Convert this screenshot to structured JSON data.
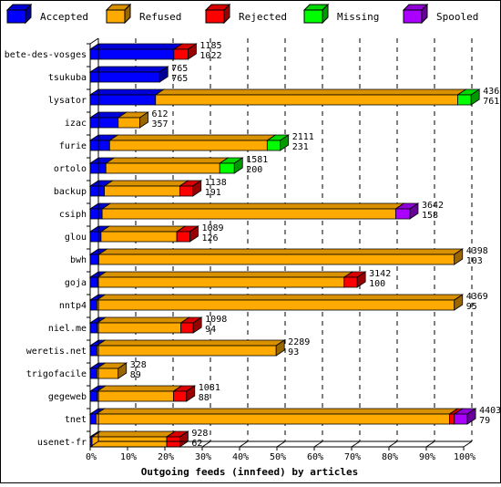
{
  "chart_data": {
    "type": "bar",
    "stacked": true,
    "orientation": "horizontal",
    "title": "",
    "xlabel": "Outgoing feeds (innfeed) by articles",
    "ylabel": "",
    "xlim": [
      0,
      100
    ],
    "x_unit": "%",
    "x_ticks": [
      "0%",
      "10%",
      "20%",
      "30%",
      "40%",
      "50%",
      "60%",
      "70%",
      "80%",
      "90%",
      "100%"
    ],
    "grid": true,
    "legend_position": "top",
    "categories": [
      "bete-des-vosges",
      "tsukuba",
      "lysator",
      "izac",
      "furie",
      "ortolo",
      "backup",
      "csiph",
      "glou",
      "bwh",
      "goja",
      "nntp4",
      "niel.me",
      "weretis.net",
      "trigofacile",
      "gegeweb",
      "tnet",
      "usenet-fr"
    ],
    "series": [
      {
        "name": "Accepted",
        "color": "#0000ff",
        "values": [
          22.4,
          18.6,
          17.5,
          7.5,
          5.2,
          4.2,
          3.8,
          3.2,
          2.9,
          2.3,
          2.0,
          1.8,
          1.9,
          1.8,
          1.8,
          1.9,
          1.6,
          0.5
        ]
      },
      {
        "name": "Refused",
        "color": "#ffaa00",
        "values": [
          0,
          0,
          80.9,
          5.8,
          42.2,
          30.5,
          20.2,
          78.6,
          20.3,
          95.2,
          66.0,
          95.7,
          22.4,
          48.0,
          5.7,
          20.4,
          94.6,
          20.0
        ]
      },
      {
        "name": "Rejected",
        "color": "#ff0000",
        "values": [
          3.8,
          0,
          0,
          0,
          0,
          0,
          3.5,
          0,
          3.5,
          0,
          3.5,
          0,
          3.3,
          0,
          0,
          3.5,
          1.3,
          3.5
        ]
      },
      {
        "name": "Missing",
        "color": "#00ff00",
        "values": [
          0,
          0,
          3.6,
          0,
          3.5,
          3.9,
          0,
          0,
          0,
          0,
          0,
          0,
          0,
          0,
          0,
          0,
          0,
          0
        ]
      },
      {
        "name": "Spooled",
        "color": "#aa00ff",
        "values": [
          0,
          0,
          0,
          0,
          0,
          0,
          0,
          3.8,
          0,
          0,
          0,
          0,
          0,
          0,
          0,
          0,
          3.5,
          0
        ]
      }
    ],
    "bar_labels": [
      [
        "1185",
        "1022"
      ],
      [
        "765",
        "765"
      ],
      [
        "4361",
        "761"
      ],
      [
        "612",
        "357"
      ],
      [
        "2111",
        "231"
      ],
      [
        "1581",
        "200"
      ],
      [
        "1138",
        "191"
      ],
      [
        "3642",
        "158"
      ],
      [
        "1089",
        "126"
      ],
      [
        "4398",
        "103"
      ],
      [
        "3142",
        "100"
      ],
      [
        "4369",
        "95"
      ],
      [
        "1098",
        "94"
      ],
      [
        "2289",
        "93"
      ],
      [
        "328",
        "89"
      ],
      [
        "1081",
        "88"
      ],
      [
        "4403",
        "79"
      ],
      [
        "928",
        "62"
      ]
    ]
  }
}
